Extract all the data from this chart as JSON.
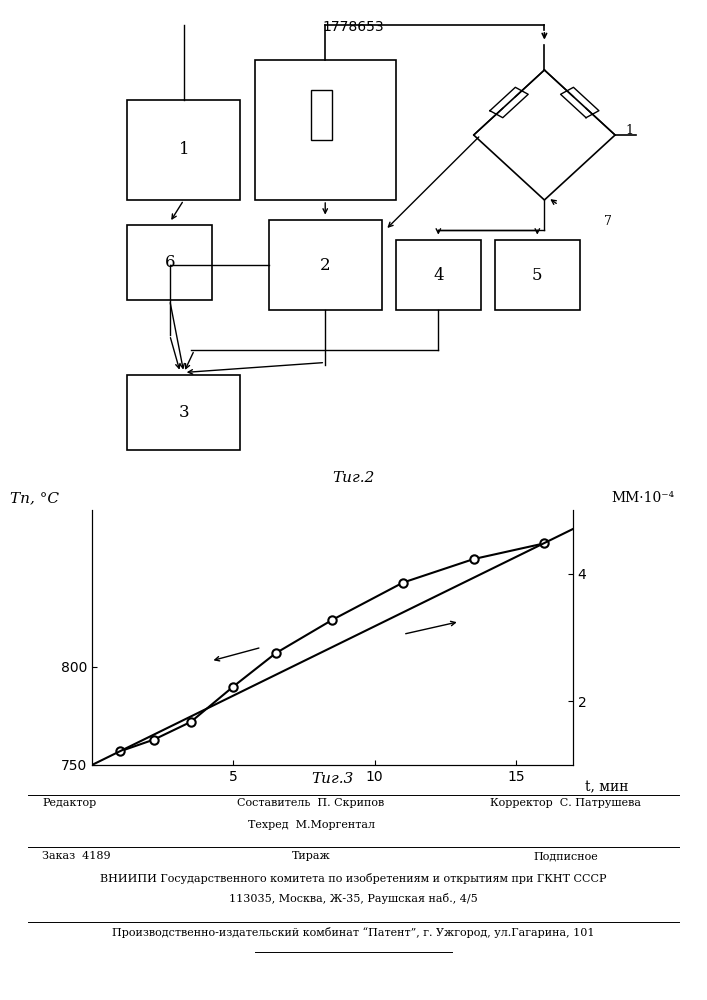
{
  "title": "1778653",
  "fig2_label": "Τиг.2",
  "fig3_label": "Τиг.3",
  "left_ylabel": "Tп, °C",
  "right_ylabel": "MM·10⁻⁴",
  "xlabel": "t, мин",
  "ylim_left": [
    750,
    880
  ],
  "ylim_right": [
    1.0,
    5.0
  ],
  "yticks_left": [
    750,
    800
  ],
  "yticks_right": [
    2,
    4
  ],
  "xticks": [
    5,
    10,
    15
  ],
  "xlim": [
    0,
    17
  ],
  "curve1_x": [
    1.0,
    2.2,
    3.5,
    5.0,
    6.5,
    8.5,
    11.0,
    13.5,
    16.0
  ],
  "curve1_y": [
    757,
    763,
    772,
    790,
    807,
    824,
    843,
    855,
    863
  ],
  "curve2_x": [
    0.0,
    17.0
  ],
  "curve2_y": [
    1.0,
    4.7
  ],
  "footer_line1": "Составитель  П. Скрипов",
  "footer_line2": "Техред  М.Моргентал",
  "footer_left": "Редактор",
  "footer_right": "Корректор  С. Патрушева",
  "footer_zakaz": "Заказ  4189",
  "footer_tirazh": "Тираж",
  "footer_podpisnoe": "Подписное",
  "footer_vniiipi": "ВНИИПИ Государственного комитета по изобретениям и открытиям при ГКНТ СССР",
  "footer_address": "113035, Москва, Ж-35, Раушская наб., 4/5",
  "footer_factory": "Производственно-издательский комбинат “Патент”, г. Ужгород, ул.Гагарина, 101"
}
